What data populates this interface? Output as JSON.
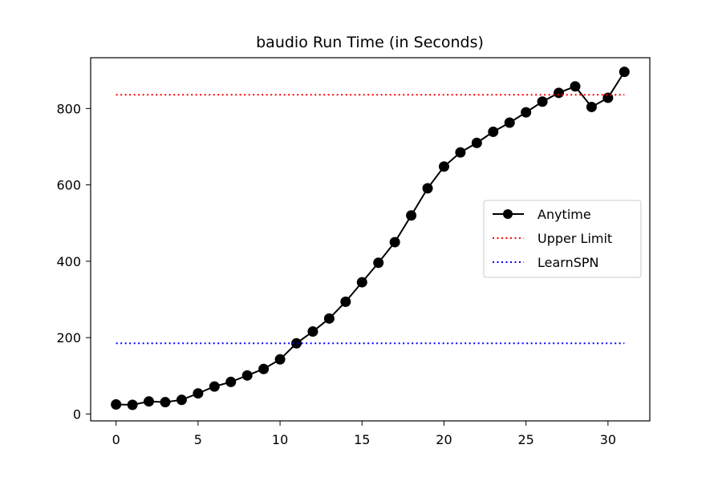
{
  "chart_data": {
    "type": "line",
    "title": "baudio Run Time (in Seconds)",
    "xlabel": "",
    "ylabel": "",
    "xlim": [
      -1.55,
      32.55
    ],
    "ylim": [
      -18,
      933
    ],
    "xticks": [
      0,
      5,
      10,
      15,
      20,
      25,
      30
    ],
    "yticks": [
      0,
      200,
      400,
      600,
      800
    ],
    "grid": false,
    "legend_position": "center-right",
    "series": [
      {
        "name": "Anytime",
        "style": "solid-with-markers",
        "color": "#000000",
        "x": [
          0,
          1,
          2,
          3,
          4,
          5,
          6,
          7,
          8,
          9,
          10,
          11,
          12,
          13,
          14,
          15,
          16,
          17,
          18,
          19,
          20,
          21,
          22,
          23,
          24,
          25,
          26,
          27,
          28,
          29,
          30,
          31
        ],
        "values": [
          25,
          24,
          33,
          31,
          37,
          54,
          72,
          84,
          101,
          118,
          143,
          185,
          216,
          250,
          294,
          345,
          396,
          450,
          520,
          591,
          648,
          685,
          710,
          739,
          763,
          790,
          818,
          841,
          858,
          804,
          828,
          896
        ]
      },
      {
        "name": "Upper Limit",
        "style": "dotted",
        "color": "#ff0000",
        "x": [
          0,
          31
        ],
        "values": [
          836,
          836
        ]
      },
      {
        "name": "LearnSPN",
        "style": "dotted",
        "color": "#0000ff",
        "x": [
          0,
          31
        ],
        "values": [
          185,
          185
        ]
      }
    ]
  }
}
